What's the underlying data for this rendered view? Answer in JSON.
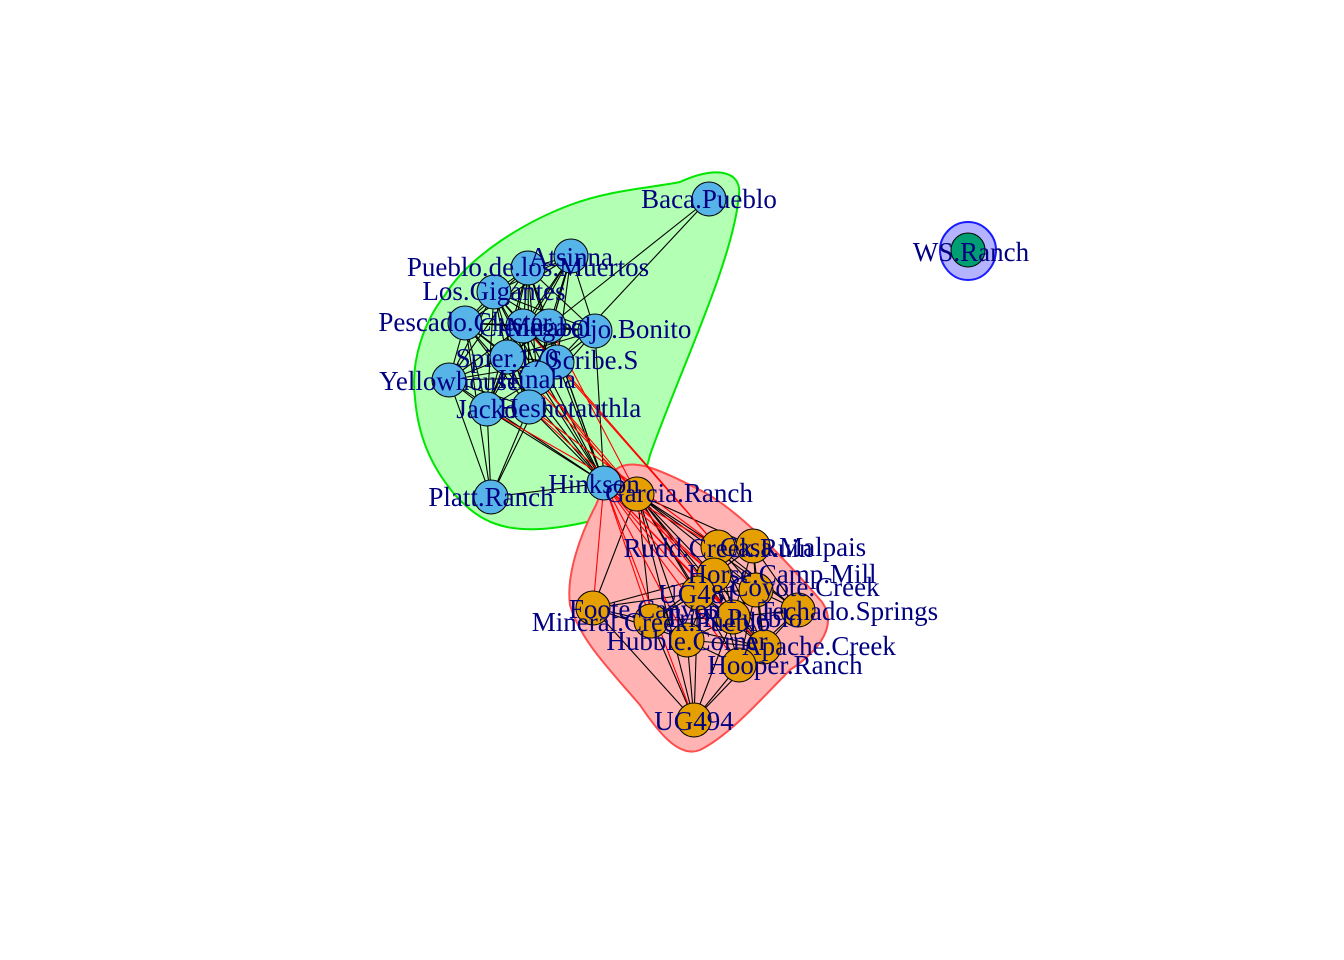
{
  "colors": {
    "cluster_fill": [
      "#b3ffb3",
      "#ffb3b3",
      "#b3b3ff"
    ],
    "cluster_border": [
      "#00e600",
      "#ff4d4d",
      "#1a1aff"
    ],
    "node_fill": [
      "#56b4e9",
      "#e69f00",
      "#009e73"
    ],
    "edge_within": "#000000",
    "edge_between": "#ff0000",
    "label": "#000080"
  },
  "nodes": [
    {
      "label": "Baca.Pueblo",
      "group": 0
    },
    {
      "label": "Atsinna",
      "group": 0
    },
    {
      "label": "Pueblo.de.los.Muertos",
      "group": 0
    },
    {
      "label": "Los.Gigantes",
      "group": 0
    },
    {
      "label": "Pescado.Cluster",
      "group": 0
    },
    {
      "label": "Ojo.Bonito",
      "group": 0
    },
    {
      "label": "Cienega",
      "group": 0
    },
    {
      "label": "Mirabal",
      "group": 0
    },
    {
      "label": "Spier.170",
      "group": 0
    },
    {
      "label": "Scribe.S",
      "group": 0
    },
    {
      "label": "Yellowhouse",
      "group": 0
    },
    {
      "label": "Hinaha",
      "group": 0
    },
    {
      "label": "Jacko",
      "group": 0
    },
    {
      "label": "Heshotauthla",
      "group": 0
    },
    {
      "label": "Platt.Ranch",
      "group": 0
    },
    {
      "label": "Hinkson",
      "group": 0
    },
    {
      "label": "Garcia.Ranch",
      "group": 1
    },
    {
      "label": "Rudd.Creek.Ruin",
      "group": 1
    },
    {
      "label": "Casa.Malpais",
      "group": 1
    },
    {
      "label": "Horse.Camp.Mill",
      "group": 1
    },
    {
      "label": "UG481",
      "group": 1
    },
    {
      "label": "Coyote.Creek",
      "group": 1
    },
    {
      "label": "Foote.Canyon",
      "group": 1
    },
    {
      "label": "Tri.R.Pueblo",
      "group": 1
    },
    {
      "label": "Mineral.Creek.Pueblo",
      "group": 1
    },
    {
      "label": "Techado.Springs",
      "group": 1
    },
    {
      "label": "Hubble.Corner",
      "group": 1
    },
    {
      "label": "Apache.Creek",
      "group": 1
    },
    {
      "label": "Hooper.Ranch",
      "group": 1
    },
    {
      "label": "UG494",
      "group": 1
    },
    {
      "label": "WS.Ranch",
      "group": 2
    }
  ]
}
